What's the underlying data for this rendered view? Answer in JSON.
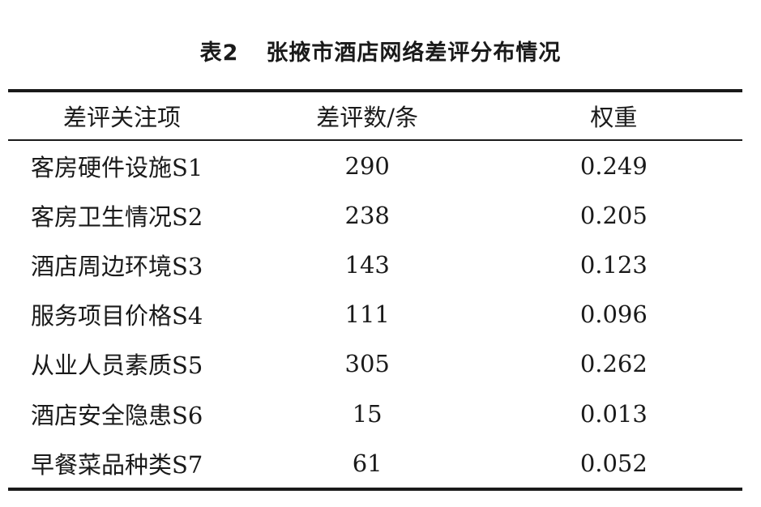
{
  "table": {
    "number": "表2",
    "title": "张掖市酒店网络差评分布情况",
    "headers": {
      "item": "差评关注项",
      "count": "差评数/条",
      "weight": "权重"
    },
    "rows": [
      {
        "item": "客房硬件设施S1",
        "count": "290",
        "weight": "0.249"
      },
      {
        "item": "客房卫生情况S2",
        "count": "238",
        "weight": "0.205"
      },
      {
        "item": "酒店周边环境S3",
        "count": "143",
        "weight": "0.123"
      },
      {
        "item": "服务项目价格S4",
        "count": "111",
        "weight": "0.096"
      },
      {
        "item": "从业人员素质S5",
        "count": "305",
        "weight": "0.262"
      },
      {
        "item": "酒店安全隐患S6",
        "count": "15",
        "weight": "0.013"
      },
      {
        "item": "早餐菜品种类S7",
        "count": "61",
        "weight": "0.052"
      }
    ]
  }
}
